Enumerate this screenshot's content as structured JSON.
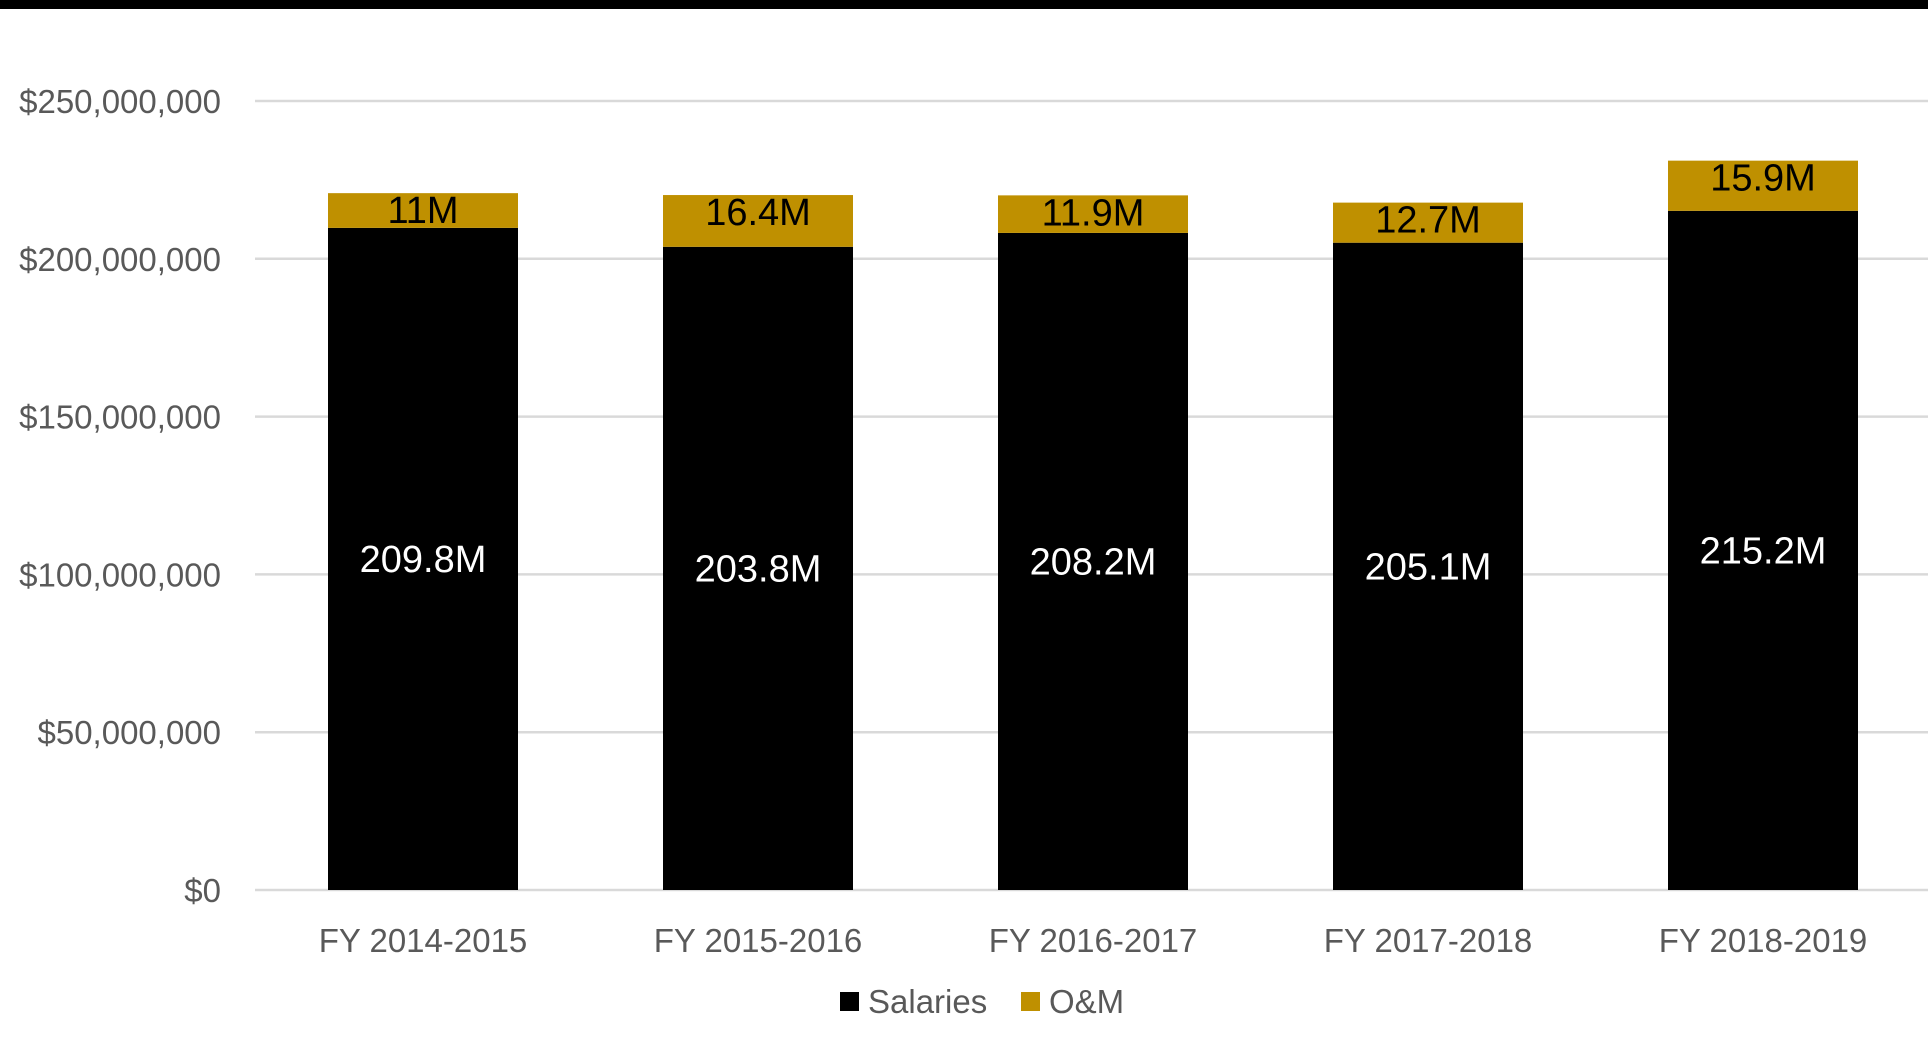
{
  "chart_data": {
    "type": "bar",
    "stacked": true,
    "title": "",
    "xlabel": "",
    "ylabel": "",
    "categories": [
      "FY 2014-2015",
      "FY 2015-2016",
      "FY 2016-2017",
      "FY 2017-2018",
      "FY 2018-2019"
    ],
    "series": [
      {
        "name": "Salaries",
        "color": "#000000",
        "values": [
          209800000,
          203800000,
          208200000,
          205100000,
          215200000
        ],
        "data_labels": [
          "209.8M",
          "203.8M",
          "208.2M",
          "205.1M",
          "215.2M"
        ],
        "label_color": "#ffffff"
      },
      {
        "name": "O&M",
        "color": "#BF9000",
        "values": [
          11000000,
          16400000,
          11900000,
          12700000,
          15900000
        ],
        "data_labels": [
          "11M",
          "16.4M",
          "11.9M",
          "12.7M",
          "15.9M"
        ],
        "label_color": "#000000"
      }
    ],
    "ylim": [
      0,
      250000000
    ],
    "yticks": [
      0,
      50000000,
      100000000,
      150000000,
      200000000,
      250000000
    ],
    "ytick_labels": [
      "$0",
      "$50,000,000",
      "$100,000,000",
      "$150,000,000",
      "$200,000,000",
      "$250,000,000"
    ],
    "grid": true,
    "legend_position": "bottom"
  }
}
